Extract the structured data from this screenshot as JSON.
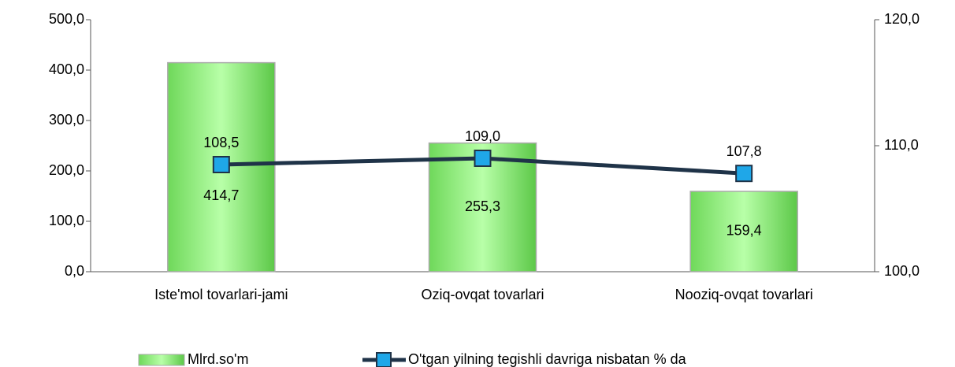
{
  "chart_data": {
    "type": "bar_line",
    "categories": [
      "Iste'mol tovarlari-jami",
      "Oziq-ovqat tovarlari",
      "Nooziq-ovqat tovarlari"
    ],
    "series": [
      {
        "name": "Mlrd.so'm",
        "type": "bar",
        "color": "#8ef07a",
        "values": [
          414.7,
          255.3,
          159.4
        ],
        "value_labels": [
          "414,7",
          "255,3",
          "159,4"
        ]
      },
      {
        "name": "O'tgan yilning tegishli davriga nisbatan % da",
        "type": "line",
        "axis": "y2",
        "color": "#1f3348",
        "marker_color": "#1fa7e8",
        "values": [
          108.5,
          109.0,
          107.8
        ],
        "value_labels": [
          "108,5",
          "109,0",
          "107,8"
        ]
      }
    ],
    "ylim": [
      0,
      500
    ],
    "yticks": [
      {
        "value": 0,
        "label": "0,0"
      },
      {
        "value": 100,
        "label": "100,0"
      },
      {
        "value": 200,
        "label": "200,0"
      },
      {
        "value": 300,
        "label": "300,0"
      },
      {
        "value": 400,
        "label": "400,0"
      },
      {
        "value": 500,
        "label": "500,0"
      }
    ],
    "y2lim": [
      100,
      120
    ],
    "y2ticks": [
      {
        "value": 100,
        "label": "100,0"
      },
      {
        "value": 110,
        "label": "110,0"
      },
      {
        "value": 120,
        "label": "120,0"
      }
    ],
    "legend": "bottom"
  }
}
